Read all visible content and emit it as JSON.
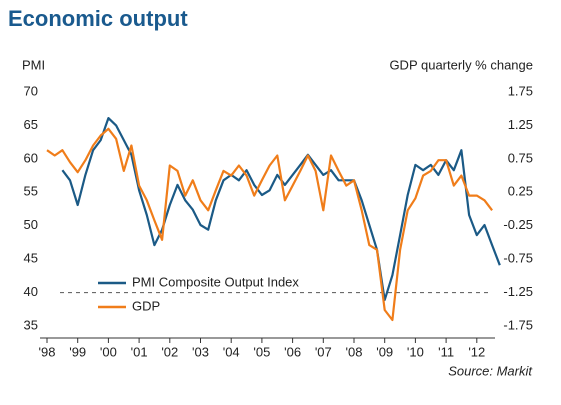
{
  "chart_data": {
    "type": "line",
    "title": "Economic output",
    "y_label": "PMI",
    "y2_label": "GDP quarterly % change",
    "source": "Source: Markit",
    "xlim": [
      1998,
      2013
    ],
    "xticks": [
      {
        "value": 1998,
        "label": "'98"
      },
      {
        "value": 1999,
        "label": "'99"
      },
      {
        "value": 2000,
        "label": "'00"
      },
      {
        "value": 2001,
        "label": "'01"
      },
      {
        "value": 2002,
        "label": "'02"
      },
      {
        "value": 2003,
        "label": "'03"
      },
      {
        "value": 2004,
        "label": "'04"
      },
      {
        "value": 2005,
        "label": "'05"
      },
      {
        "value": 2006,
        "label": "'06"
      },
      {
        "value": 2007,
        "label": "'07"
      },
      {
        "value": 2008,
        "label": "'08"
      },
      {
        "value": 2009,
        "label": "'09"
      },
      {
        "value": 2010,
        "label": "'10"
      },
      {
        "value": 2011,
        "label": "'11"
      },
      {
        "value": 2012,
        "label": "'12"
      }
    ],
    "ylim": [
      35,
      70
    ],
    "yticks": [
      70,
      65,
      60,
      55,
      50,
      45,
      40,
      35
    ],
    "y2lim": [
      -1.75,
      1.75
    ],
    "y2ticks": [
      1.75,
      1.25,
      0.75,
      0.25,
      -0.25,
      -0.75,
      -1.25,
      -1.75
    ],
    "legend": "lower left",
    "series": [
      {
        "name": "PMI Composite Output Index",
        "color": "#1b5a86",
        "x": [
          1998.5,
          1998.75,
          1999,
          1999.25,
          1999.5,
          1999.75,
          2000,
          2000.25,
          2000.5,
          2000.75,
          2001,
          2001.25,
          2001.5,
          2001.75,
          2002,
          2002.25,
          2002.5,
          2002.75,
          2003,
          2003.25,
          2003.5,
          2003.75,
          2004,
          2004.25,
          2004.5,
          2004.75,
          2005,
          2005.25,
          2005.5,
          2005.75,
          2006,
          2006.25,
          2006.5,
          2006.75,
          2007,
          2007.25,
          2007.5,
          2007.75,
          2008,
          2008.25,
          2008.5,
          2008.75,
          2009,
          2009.25,
          2009.5,
          2009.75,
          2010,
          2010.25,
          2010.5,
          2010.75,
          2011,
          2011.25,
          2011.5,
          2011.75,
          2012,
          2012.25,
          2012.5,
          2012.75
        ],
        "values": [
          58.3,
          56.8,
          53.1,
          57.6,
          61.3,
          62.8,
          66.1,
          65,
          62.8,
          60.6,
          55.3,
          51.6,
          47.1,
          49.4,
          53.1,
          56.1,
          53.8,
          52.4,
          50.1,
          49.4,
          53.8,
          56.8,
          57.6,
          56.8,
          58.3,
          56.1,
          54.6,
          55.3,
          57.6,
          56.1,
          57.6,
          59.1,
          60.6,
          59.1,
          57.6,
          58.3,
          56.8,
          56.8,
          56.8,
          53.8,
          50.1,
          46.4,
          38.9,
          42.6,
          48.6,
          54.6,
          59.1,
          58.3,
          59.1,
          57.6,
          59.8,
          58.3,
          61.3,
          51.6,
          48.6,
          50.1,
          47.1,
          44.1
        ]
      },
      {
        "name": "GDP",
        "color": "#f07d1a",
        "axis": "y2",
        "x": [
          1998,
          1998.25,
          1998.5,
          1998.75,
          1999,
          1999.25,
          1999.5,
          1999.75,
          2000,
          2000.25,
          2000.5,
          2000.75,
          2001,
          2001.25,
          2001.5,
          2001.75,
          2002,
          2002.25,
          2002.5,
          2002.75,
          2003,
          2003.25,
          2003.5,
          2003.75,
          2004,
          2004.25,
          2004.5,
          2004.75,
          2005,
          2005.25,
          2005.5,
          2005.75,
          2006,
          2006.25,
          2006.5,
          2006.75,
          2007,
          2007.25,
          2007.5,
          2007.75,
          2008,
          2008.25,
          2008.5,
          2008.75,
          2009,
          2009.25,
          2009.5,
          2009.75,
          2010,
          2010.25,
          2010.5,
          2010.75,
          2011,
          2011.25,
          2011.5,
          2011.75,
          2012,
          2012.25,
          2012.5
        ],
        "values": [
          0.88,
          0.8,
          0.88,
          0.7,
          0.55,
          0.73,
          0.95,
          1.1,
          1.2,
          1.05,
          0.57,
          0.95,
          0.35,
          0.13,
          -0.17,
          -0.46,
          0.65,
          0.57,
          0.2,
          0.43,
          0.13,
          -0.02,
          0.28,
          0.57,
          0.5,
          0.65,
          0.5,
          0.2,
          0.43,
          0.65,
          0.8,
          0.13,
          0.35,
          0.57,
          0.8,
          0.57,
          -0.02,
          0.8,
          0.57,
          0.35,
          0.43,
          -0.02,
          -0.54,
          -0.61,
          -1.51,
          -1.66,
          -0.61,
          -0.02,
          0.16,
          0.5,
          0.57,
          0.73,
          0.73,
          0.35,
          0.5,
          0.2,
          0.2,
          0.13,
          -0.02
        ]
      }
    ]
  }
}
